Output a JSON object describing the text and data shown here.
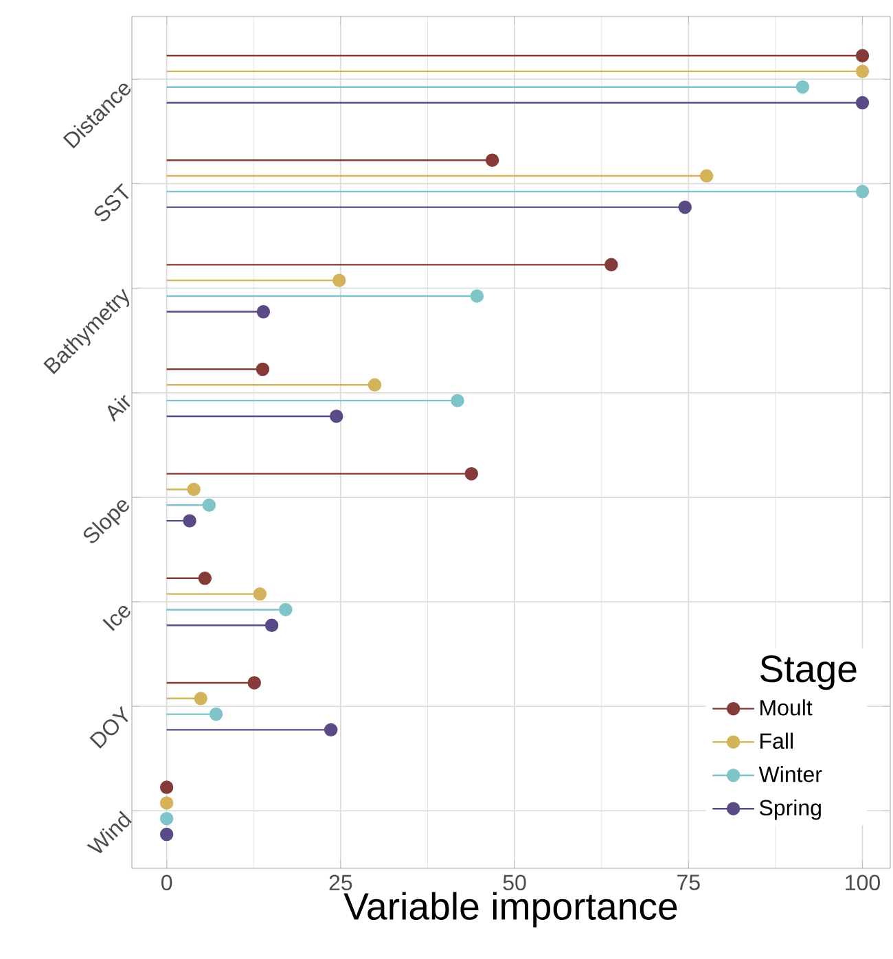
{
  "chart_data": {
    "type": "lollipop",
    "orientation": "horizontal",
    "xlabel": "Variable importance",
    "legend_title": "Stage",
    "legend": "bottom right",
    "grid": true,
    "marker": "circle",
    "categories": [
      "Distance",
      "SST",
      "Bathymetry",
      "Air",
      "Slope",
      "Ice",
      "DOY",
      "Wind"
    ],
    "xlim": [
      -5,
      104
    ],
    "xticks": [
      0,
      25,
      50,
      75,
      100
    ],
    "series": [
      {
        "name": "Moult",
        "color": "#853b37",
        "values": [
          100,
          46.8,
          63.9,
          13.8,
          43.8,
          5.5,
          12.6,
          0
        ]
      },
      {
        "name": "Fall",
        "color": "#d4b35a",
        "values": [
          100,
          77.6,
          24.8,
          29.9,
          3.9,
          13.4,
          4.9,
          0
        ]
      },
      {
        "name": "Winter",
        "color": "#7ec4c8",
        "values": [
          91.4,
          100,
          44.6,
          41.8,
          6.1,
          17.1,
          7.1,
          0
        ]
      },
      {
        "name": "Spring",
        "color": "#5a4a86",
        "values": [
          100,
          74.5,
          13.9,
          24.4,
          3.3,
          15.1,
          23.6,
          0
        ]
      }
    ]
  }
}
